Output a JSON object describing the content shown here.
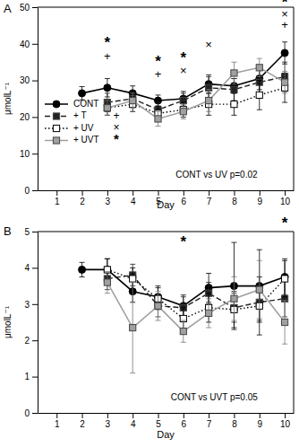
{
  "chart_data": [
    {
      "type": "line",
      "title": "A",
      "x_label": "Day",
      "y_label": "μmolL⁻¹",
      "x": [
        2,
        3,
        4,
        5,
        6,
        7,
        8,
        9,
        10
      ],
      "xlim": [
        0.25,
        10.35
      ],
      "xticks": [
        1,
        2,
        3,
        4,
        5,
        6,
        7,
        8,
        9,
        10
      ],
      "ylim": [
        0,
        50
      ],
      "yticks": [
        0,
        10,
        20,
        30,
        40,
        50
      ],
      "legend": "lower-left",
      "series": [
        {
          "name": "CONT",
          "color": "#000000",
          "marker": "circle",
          "line_style": "solid",
          "values": [
            26.5,
            28,
            26.5,
            24.5,
            25,
            29,
            28.5,
            30.5,
            37.5
          ],
          "errors": [
            1.8,
            2.5,
            2,
            1.5,
            2,
            2.5,
            2,
            3,
            3
          ]
        },
        {
          "name": "+ T",
          "sig_symbol": "+",
          "color": "#222222",
          "marker": "square",
          "line_style": "dashed",
          "values": [
            null,
            24,
            25,
            22,
            24.5,
            28,
            27.5,
            29.5,
            31
          ],
          "errors": [
            null,
            2.5,
            2,
            2,
            2,
            3,
            3,
            4,
            4
          ]
        },
        {
          "name": "+ UV",
          "sig_symbol": "×",
          "color": "#000000",
          "marker": "open-square",
          "line_style": "dotted",
          "values": [
            null,
            22.5,
            23.5,
            21,
            22,
            23.5,
            23.5,
            26,
            28
          ],
          "errors": [
            null,
            2,
            2,
            2,
            2,
            3,
            3,
            4,
            4
          ]
        },
        {
          "name": "+ UVT",
          "sig_symbol": "*",
          "color": "#a0a0a0",
          "marker": "square",
          "line_style": "solid",
          "values": [
            null,
            22.5,
            24.5,
            19.5,
            21.5,
            24.5,
            32,
            33.5,
            29.5
          ],
          "errors": [
            null,
            2,
            2,
            2,
            2,
            3,
            3,
            2.5,
            3
          ]
        }
      ],
      "annotations": [
        {
          "text": "*",
          "x": 3,
          "y": 40
        },
        {
          "text": "+",
          "x": 3,
          "y": 36.5
        },
        {
          "text": "*",
          "x": 5,
          "y": 35
        },
        {
          "text": "+",
          "x": 5,
          "y": 31.5
        },
        {
          "text": "*",
          "x": 6,
          "y": 36
        },
        {
          "text": "×",
          "x": 6,
          "y": 32.5
        },
        {
          "text": "×",
          "x": 7,
          "y": 39.5
        },
        {
          "text": "*",
          "x": 10,
          "y": 51
        },
        {
          "text": "×",
          "x": 10,
          "y": 48
        },
        {
          "text": "+",
          "x": 10,
          "y": 45
        },
        {
          "text": "CONT vs UV  p=0.02",
          "x": 5.7,
          "y": 4
        }
      ]
    },
    {
      "type": "line",
      "title": "B",
      "x_label": "Day",
      "y_label": "μmolL⁻¹",
      "x": [
        2,
        3,
        4,
        5,
        6,
        7,
        8,
        9,
        10
      ],
      "xlim": [
        0.25,
        10.35
      ],
      "xticks": [
        1,
        2,
        3,
        4,
        5,
        6,
        7,
        8,
        9,
        10
      ],
      "ylim": [
        0,
        5
      ],
      "yticks": [
        0,
        1,
        2,
        3,
        4,
        5
      ],
      "series": [
        {
          "name": "CONT",
          "color": "#000000",
          "marker": "circle",
          "line_style": "solid",
          "values": [
            3.95,
            3.95,
            3.35,
            3.2,
            2.95,
            3.45,
            3.5,
            3.5,
            3.75
          ],
          "errors": [
            0.2,
            0.3,
            0.3,
            0.3,
            0.3,
            0.4,
            1.2,
            1,
            0.5
          ]
        },
        {
          "name": "+ T",
          "color": "#222222",
          "marker": "square",
          "line_style": "dashed",
          "values": [
            null,
            3.7,
            3.8,
            2.95,
            2.9,
            3.3,
            2.9,
            3.05,
            3.15
          ],
          "errors": [
            null,
            0.3,
            0.3,
            0.3,
            0.3,
            0.3,
            0.4,
            0.5,
            0.5
          ]
        },
        {
          "name": "+ UV",
          "color": "#000000",
          "marker": "open-square",
          "line_style": "dotted",
          "values": [
            null,
            3.95,
            3.7,
            3.15,
            2.6,
            2.9,
            2.85,
            2.95,
            3.7
          ],
          "errors": [
            null,
            0.3,
            0.3,
            0.3,
            0.3,
            0.4,
            0.5,
            0.8,
            0.5
          ]
        },
        {
          "name": "+ UVT",
          "color": "#a0a0a0",
          "marker": "square",
          "line_style": "solid",
          "values": [
            null,
            3.6,
            2.35,
            2.95,
            2.25,
            2.75,
            3.15,
            3.4,
            2.5
          ],
          "errors": [
            null,
            0.3,
            1.25,
            0.4,
            0.3,
            0.4,
            0.6,
            0.8,
            0.6
          ]
        }
      ],
      "annotations": [
        {
          "text": "*",
          "x": 6,
          "y": 4.7
        },
        {
          "text": "*",
          "x": 10,
          "y": 5.2
        },
        {
          "text": "CONT vs UVT  p=0.05",
          "x": 5.5,
          "y": 0.4
        }
      ]
    }
  ]
}
